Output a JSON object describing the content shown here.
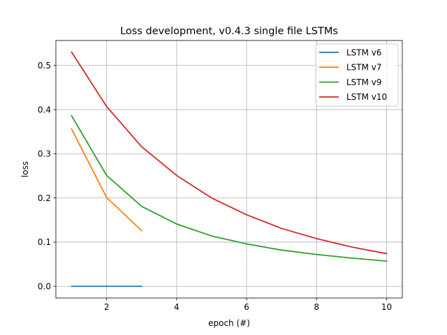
{
  "chart_data": {
    "type": "line",
    "title": "Loss development, v0.4.3 single file LSTMs",
    "xlabel": "epoch (#)",
    "ylabel": "loss",
    "xlim": [
      0.55,
      10.45
    ],
    "ylim": [
      -0.0265,
      0.5565
    ],
    "xticks": [
      2,
      4,
      6,
      8,
      10
    ],
    "xtick_labels": [
      "2",
      "4",
      "6",
      "8",
      "10"
    ],
    "yticks": [
      0.0,
      0.1,
      0.2,
      0.3,
      0.4,
      0.5
    ],
    "ytick_labels": [
      "0.0",
      "0.1",
      "0.2",
      "0.3",
      "0.4",
      "0.5"
    ],
    "grid": true,
    "legend_position": "top-right",
    "series": [
      {
        "name": "LSTM v6",
        "color": "#1f77b4",
        "x": [
          1,
          2,
          3
        ],
        "y": [
          0.0,
          0.0,
          0.0
        ]
      },
      {
        "name": "LSTM v7",
        "color": "#ff7f0e",
        "x": [
          1,
          2,
          3
        ],
        "y": [
          0.356,
          0.201,
          0.126
        ]
      },
      {
        "name": "LSTM v9",
        "color": "#2ca02c",
        "x": [
          1,
          2,
          3,
          4,
          5,
          6,
          7,
          8,
          9,
          10
        ],
        "y": [
          0.386,
          0.251,
          0.181,
          0.141,
          0.114,
          0.096,
          0.082,
          0.072,
          0.064,
          0.057
        ]
      },
      {
        "name": "LSTM v10",
        "color": "#d62728",
        "x": [
          1,
          2,
          3,
          4,
          5,
          6,
          7,
          8,
          9,
          10
        ],
        "y": [
          0.53,
          0.407,
          0.316,
          0.251,
          0.2,
          0.162,
          0.131,
          0.108,
          0.089,
          0.074
        ]
      }
    ]
  }
}
